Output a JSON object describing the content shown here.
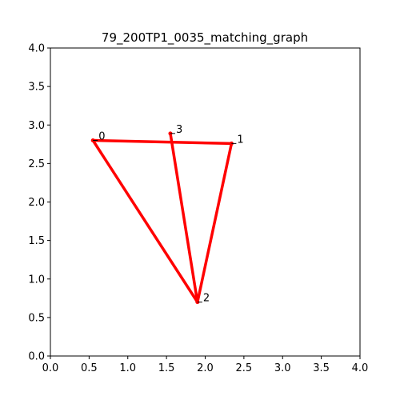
{
  "chart_data": {
    "type": "line",
    "title": "79_200TP1_0035_matching_graph",
    "xlabel": "",
    "ylabel": "",
    "xlim": [
      0,
      4
    ],
    "ylim": [
      0,
      4
    ],
    "x_ticks": [
      "0.0",
      "0.5",
      "1.0",
      "1.5",
      "2.0",
      "2.5",
      "3.0",
      "3.5",
      "4.0"
    ],
    "y_ticks": [
      "0.0",
      "0.5",
      "1.0",
      "1.5",
      "2.0",
      "2.5",
      "3.0",
      "3.5",
      "4.0"
    ],
    "grid": false,
    "nodes": [
      {
        "label": "0",
        "x": 0.55,
        "y": 2.8
      },
      {
        "label": "1",
        "x": 2.34,
        "y": 2.76
      },
      {
        "label": "2",
        "x": 1.9,
        "y": 0.7
      },
      {
        "label": "3",
        "x": 1.55,
        "y": 2.89
      }
    ],
    "edges": [
      [
        0,
        1
      ],
      [
        0,
        2
      ],
      [
        1,
        2
      ],
      [
        2,
        3
      ]
    ],
    "colors": {
      "edge": "#ff0000",
      "node": "#ff0000",
      "label_marker": "#000000"
    }
  }
}
